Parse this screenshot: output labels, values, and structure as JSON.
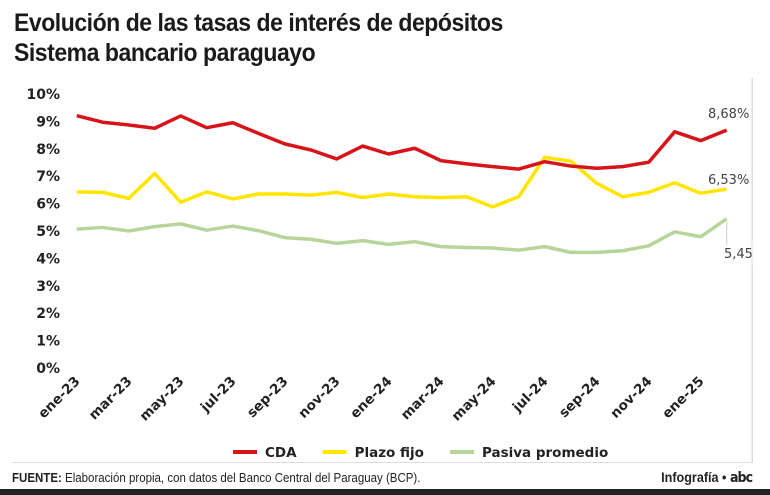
{
  "title": {
    "line1": "Evolución de las tasas de interés de depósitos",
    "line2": "Sistema bancario paraguayo"
  },
  "footer": {
    "label": "FUENTE:",
    "text": " Elaboración propia, con datos del Banco Central del Paraguay (BCP).",
    "brand": "Infografía •",
    "logo": "abc"
  },
  "chart_data": {
    "type": "line",
    "x": [
      "ene-23",
      "feb-23",
      "mar-23",
      "abr-23",
      "may-23",
      "jun-23",
      "jul-23",
      "ago-23",
      "sep-23",
      "oct-23",
      "nov-23",
      "dic-23",
      "ene-24",
      "feb-24",
      "mar-24",
      "abr-24",
      "may-24",
      "jun-24",
      "jul-24",
      "ago-24",
      "sep-24",
      "oct-24",
      "nov-24",
      "dic-24",
      "ene-25",
      "feb-25"
    ],
    "xtick_labels": [
      "ene-23",
      "mar-23",
      "may-23",
      "jul-23",
      "sep-23",
      "nov-23",
      "ene-24",
      "mar-24",
      "may-24",
      "jul-24",
      "sep-24",
      "nov-24",
      "ene-25"
    ],
    "ytick_labels": [
      "0%",
      "1%",
      "2%",
      "3%",
      "4%",
      "5%",
      "6%",
      "7%",
      "8%",
      "9%",
      "10%"
    ],
    "ylim": [
      0,
      10
    ],
    "grid": false,
    "legend": "bottom",
    "series": [
      {
        "name": "CDA",
        "color": "#d7141a",
        "values": [
          9.21,
          8.97,
          8.87,
          8.75,
          9.2,
          8.77,
          8.95,
          8.56,
          8.18,
          7.96,
          7.63,
          8.1,
          7.81,
          8.02,
          7.57,
          7.45,
          7.35,
          7.26,
          7.53,
          7.37,
          7.29,
          7.35,
          7.51,
          8.62,
          8.3,
          8.68
        ],
        "end_label": "8,68%"
      },
      {
        "name": "Plazo fijo",
        "color": "#ffe500",
        "values": [
          6.43,
          6.41,
          6.19,
          7.1,
          6.05,
          6.43,
          6.17,
          6.35,
          6.35,
          6.31,
          6.41,
          6.22,
          6.35,
          6.25,
          6.22,
          6.25,
          5.88,
          6.25,
          7.69,
          7.55,
          6.74,
          6.25,
          6.41,
          6.76,
          6.38,
          6.53
        ],
        "end_label": "6,53%"
      },
      {
        "name": "Pasiva promedio",
        "color": "#b7d59a",
        "values": [
          5.07,
          5.13,
          5.0,
          5.16,
          5.26,
          5.03,
          5.18,
          5.01,
          4.76,
          4.7,
          4.55,
          4.65,
          4.51,
          4.61,
          4.43,
          4.4,
          4.38,
          4.3,
          4.43,
          4.22,
          4.22,
          4.28,
          4.46,
          4.97,
          4.79,
          5.45
        ],
        "end_label": "5,45%"
      }
    ]
  }
}
